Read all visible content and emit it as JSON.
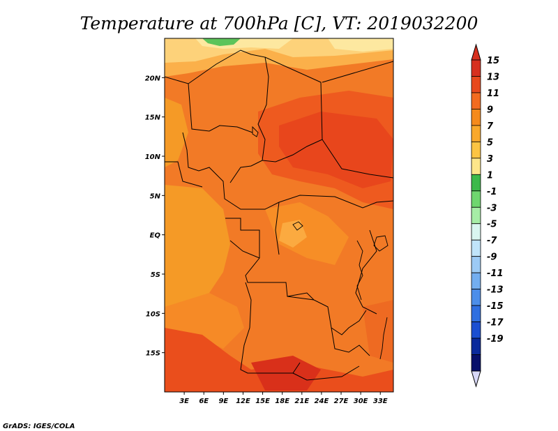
{
  "title": "Temperature at 700hPa [C], VT: 2019032200",
  "credit": "GrADS: IGES/COLA",
  "map": {
    "x_ticks": [
      "3E",
      "6E",
      "9E",
      "12E",
      "15E",
      "18E",
      "21E",
      "24E",
      "27E",
      "30E",
      "33E"
    ],
    "y_ticks": [
      "20N",
      "15N",
      "10N",
      "5N",
      "EQ",
      "5S",
      "10S",
      "15S"
    ],
    "lon_range": [
      0,
      35
    ],
    "lat_range": [
      -20,
      25
    ]
  },
  "colorbar": {
    "levels": [
      "15",
      "13",
      "11",
      "9",
      "7",
      "5",
      "3",
      "1",
      "-1",
      "-3",
      "-5",
      "-7",
      "-9",
      "-11",
      "-13",
      "-15",
      "-17",
      "-19"
    ],
    "colors": [
      "#d7301f",
      "#e8491d",
      "#f26b1f",
      "#f58a1c",
      "#f9a82b",
      "#fcc443",
      "#fde68a",
      "#3cb94a",
      "#6fd66f",
      "#a6eda6",
      "#d9f6f0",
      "#c0e4fa",
      "#9ccaf5",
      "#73aef0",
      "#4c8ee9",
      "#2f6fe0",
      "#1b4fd1",
      "#0a2a9c",
      "#07106b"
    ],
    "top_arrow_color": "#d7301f",
    "bottom_arrow_color": "#d8d8f8"
  }
}
